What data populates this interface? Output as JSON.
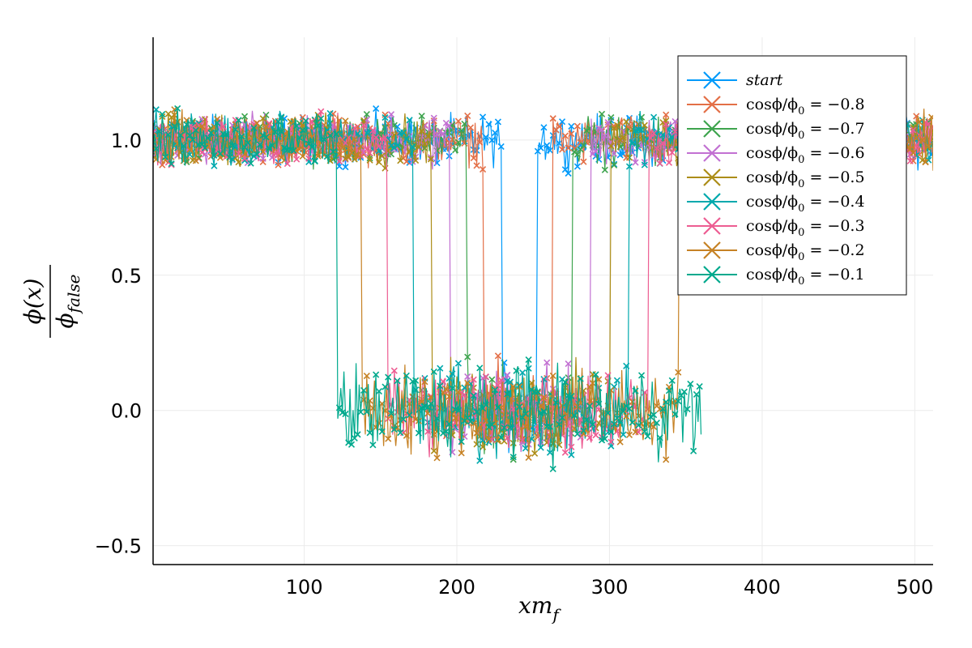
{
  "chart_data": {
    "type": "line",
    "marker": "x-cross",
    "title": "",
    "xlabel": "xm_f",
    "xlabel_main": "xm",
    "xlabel_sub": "f",
    "ylabel_numerator": "ϕ(x)",
    "ylabel_denominator_main": "ϕ",
    "ylabel_denominator_sub": "false",
    "xlim": [
      1,
      512
    ],
    "ylim": [
      -0.57,
      1.38
    ],
    "xticks": [
      100,
      200,
      300,
      400,
      500
    ],
    "xtick_labels": [
      "100",
      "200",
      "300",
      "400",
      "500"
    ],
    "yticks": [
      -0.5,
      0.0,
      0.5,
      1.0
    ],
    "ytick_labels": [
      "−0.5",
      "0.0",
      "0.5",
      "1.0"
    ],
    "grid": true,
    "legend_position": "top-right",
    "noise_amplitude": 0.13,
    "series": [
      {
        "name": "start",
        "label_parts": [
          "start"
        ],
        "color": "#009AFA",
        "wall_left": 230,
        "wall_right": 252,
        "noise_right_end": 512,
        "skip": [
          236,
          237,
          238,
          239,
          240,
          241,
          242,
          243,
          244,
          245,
          246
        ]
      },
      {
        "name": "cosϕ/ϕ0 = −0.8",
        "label_parts": [
          "cosϕ/ϕ",
          "0",
          " = −0.8"
        ],
        "color": "#E36F47",
        "wall_left": 218,
        "wall_right": 262,
        "noise_right_end": 512,
        "skip": []
      },
      {
        "name": "cosϕ/ϕ0 = −0.7",
        "label_parts": [
          "cosϕ/ϕ",
          "0",
          " = −0.7"
        ],
        "color": "#3EA44E",
        "wall_left": 207,
        "wall_right": 275,
        "noise_right_end": 512,
        "skip": []
      },
      {
        "name": "cosϕ/ϕ0 = −0.6",
        "label_parts": [
          "cosϕ/ϕ",
          "0",
          " = −0.6"
        ],
        "color": "#C271D2",
        "wall_left": 196,
        "wall_right": 287,
        "noise_right_end": 512,
        "skip": []
      },
      {
        "name": "cosϕ/ϕ0 = −0.5",
        "label_parts": [
          "cosϕ/ϕ",
          "0",
          " = −0.5"
        ],
        "color": "#AC8D18",
        "wall_left": 184,
        "wall_right": 300,
        "noise_right_end": 512,
        "skip": []
      },
      {
        "name": "cosϕ/ϕ0 = −0.4",
        "label_parts": [
          "cosϕ/ϕ",
          "0",
          " = −0.4"
        ],
        "color": "#00A9AD",
        "wall_left": 172,
        "wall_right": 312,
        "noise_right_end": 512,
        "skip": []
      },
      {
        "name": "cosϕ/ϕ0 = −0.3",
        "label_parts": [
          "cosϕ/ϕ",
          "0",
          " = −0.3"
        ],
        "color": "#ED5D92",
        "wall_left": 155,
        "wall_right": 325,
        "noise_right_end": 512,
        "skip": []
      },
      {
        "name": "cosϕ/ϕ0 = −0.2",
        "label_parts": [
          "cosϕ/ϕ",
          "0",
          " = −0.2"
        ],
        "color": "#C68225",
        "wall_left": 138,
        "wall_right": 345,
        "noise_right_end": 512,
        "skip": []
      },
      {
        "name": "cosϕ/ϕ0 = −0.1",
        "label_parts": [
          "cosϕ/ϕ",
          "0",
          " = −0.1"
        ],
        "color": "#00A98D",
        "wall_left": 122,
        "wall_right": 360,
        "noise_right_end": 360,
        "skip": []
      }
    ]
  }
}
